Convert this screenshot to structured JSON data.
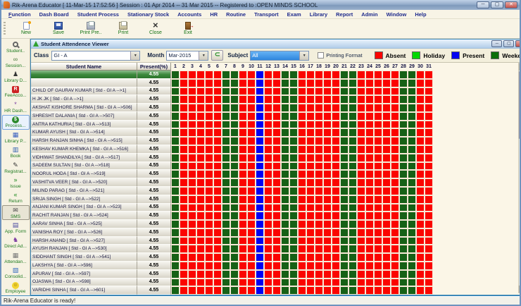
{
  "window": {
    "title": "Rik-Arena Educator [ 11-Mar-15 17:52:56 ] Session : 01 Apr 2014 -- 31 Mar 2015 -- Registered to :OPEN MINDS SCHOOL",
    "minimize": "─",
    "maximize": "▢",
    "close": "✕",
    "status_bar": "Rik-Arena Educator is ready!"
  },
  "menu_bar": {
    "items": [
      "Function",
      "Dash Board",
      "Student Process",
      "Stationary Stock",
      "Accounts",
      "HR",
      "Routine",
      "Transport",
      "Exam",
      "Library",
      "Report",
      "Admin",
      "Window",
      "Help"
    ]
  },
  "toolbar": {
    "buttons": [
      {
        "label": "New",
        "icon": "new-document-icon"
      },
      {
        "label": "Save",
        "icon": "save-floppy-icon"
      },
      {
        "label": "Print Pre..",
        "icon": "print-preview-icon"
      },
      {
        "label": "Print",
        "icon": "printer-icon"
      },
      {
        "label": "Close",
        "icon": "close-x-icon"
      },
      {
        "label": "Exit",
        "icon": "exit-door-icon"
      }
    ]
  },
  "sidebar": {
    "items": [
      {
        "label": "Student..",
        "icon": "magnifier-icon",
        "highlight": ""
      },
      {
        "label": "Session...",
        "icon": "session-icon",
        "highlight": ""
      },
      {
        "label": "Library D...",
        "icon": "library-desk-icon",
        "highlight": ""
      },
      {
        "label": "FeeAcco...",
        "icon": "fee-account-icon",
        "highlight": ""
      },
      {
        "label": "HR Dash...",
        "icon": "hr-dashboard-icon",
        "highlight": ""
      },
      {
        "label": "Process...",
        "icon": "money-bag-icon",
        "highlight": "blue"
      },
      {
        "label": "Library P...",
        "icon": "library-grid-icon",
        "highlight": ""
      },
      {
        "label": "Book",
        "icon": "book-icon",
        "highlight": ""
      },
      {
        "label": "Registrat...",
        "icon": "pencil-icon",
        "highlight": ""
      },
      {
        "label": "Issue",
        "icon": "issue-arrows-icon",
        "highlight": ""
      },
      {
        "label": "Return",
        "icon": "return-arrows-icon",
        "highlight": ""
      },
      {
        "label": "SMS",
        "icon": "sms-envelope-icon",
        "highlight": "gray"
      },
      {
        "label": "App. Form",
        "icon": "application-form-icon",
        "highlight": ""
      },
      {
        "label": "Direct Ad...",
        "icon": "direct-admission-icon",
        "highlight": ""
      },
      {
        "label": "Attendan...",
        "icon": "attendance-icon",
        "highlight": ""
      },
      {
        "label": "Consolid...",
        "icon": "consolidated-icon",
        "highlight": ""
      },
      {
        "label": "Employee",
        "icon": "smiley-icon",
        "highlight": ""
      }
    ]
  },
  "viewer": {
    "title": "Student Attendence Viewer",
    "minimize": "─",
    "maximize": "▢",
    "close": "✕",
    "class_label": "Class",
    "class_value": "GI - A",
    "month_label": "Month",
    "month_value": "Mar-2015",
    "go_button": "⊂",
    "subject_label": "Subject",
    "subject_value": "All",
    "printing_format_label": "Printing Format",
    "legend": [
      {
        "label": "Absent",
        "color": "#FB0500"
      },
      {
        "label": "Holiday",
        "color": "#00D800"
      },
      {
        "label": "Present",
        "color": "#0202F2"
      },
      {
        "label": "Weekend",
        "color": "#0A6E0A"
      }
    ]
  },
  "table": {
    "name_header": "Student Name",
    "present_header": "Present(%)",
    "days": [
      1,
      2,
      3,
      4,
      5,
      6,
      7,
      8,
      9,
      10,
      11,
      12,
      13,
      14,
      15,
      16,
      17,
      18,
      19,
      20,
      21,
      22,
      23,
      24,
      25,
      26,
      27,
      28,
      29,
      30,
      31
    ],
    "day_status": [
      "weekend",
      "absent",
      "absent",
      "absent",
      "absent",
      "absent",
      "weekend",
      "weekend",
      "absent",
      "absent",
      "present",
      "absent",
      "absent",
      "weekend",
      "weekend",
      "absent",
      "absent",
      "absent",
      "absent",
      "absent",
      "weekend",
      "weekend",
      "absent",
      "absent",
      "absent",
      "absent",
      "absent",
      "weekend",
      "weekend",
      "absent",
      "absent"
    ],
    "status_colors": {
      "absent": "#FB0500",
      "present": "#0202F2",
      "weekend": "#166116",
      "holiday": "#00D800"
    },
    "rows": [
      {
        "name": "",
        "present": "4.55",
        "selected": true
      },
      {
        "name": "",
        "present": "4.55",
        "selected": false
      },
      {
        "name": "CHILD OF GAURAV KUMAR   [ Std - GI A  -->1]",
        "present": "4.55",
        "selected": false
      },
      {
        "name": "H JK JK [ Std - GI A  -->1]",
        "present": "4.55",
        "selected": false
      },
      {
        "name": "AKSHAT KISHORE SHARMA   [ Std - GI A  -->506]",
        "present": "4.55",
        "selected": false
      },
      {
        "name": "SHRESHT DALANIA   [ Std - GI A  -->507]",
        "present": "4.55",
        "selected": false
      },
      {
        "name": "ANTRA KATHURIA   [ Std - GI A  -->513]",
        "present": "4.55",
        "selected": false
      },
      {
        "name": "KUMAR AYUSH   [ Std - GI A  -->514]",
        "present": "4.55",
        "selected": false
      },
      {
        "name": "HARSH RANJAN SINHA   [ Std - GI A  -->515]",
        "present": "4.55",
        "selected": false
      },
      {
        "name": "KESHAV KUMAR KHEMKA   [ Std - GI A  -->516]",
        "present": "4.55",
        "selected": false
      },
      {
        "name": "VIDHIWAT SHANDILYA   [ Std - GI A  -->517]",
        "present": "4.55",
        "selected": false
      },
      {
        "name": "SADEEM SULTAN   [ Std - GI A  -->518]",
        "present": "4.55",
        "selected": false
      },
      {
        "name": "NOORUL HODA   [ Std - GI A  -->519]",
        "present": "4.55",
        "selected": false
      },
      {
        "name": "VASHITVA VEER   [ Std - GI A  -->520]",
        "present": "4.55",
        "selected": false
      },
      {
        "name": "MILIND PARAG   [ Std - GI A  -->521]",
        "present": "4.55",
        "selected": false
      },
      {
        "name": "SRIJA SINGH   [ Std - GI A  -->522]",
        "present": "4.55",
        "selected": false
      },
      {
        "name": "ANJANI KUMAR SINGH   [ Std - GI A  -->523]",
        "present": "4.55",
        "selected": false
      },
      {
        "name": "RACHIT RANJAN   [ Std - GI A  -->524]",
        "present": "4.55",
        "selected": false
      },
      {
        "name": "AARAV SINHA   [ Std - GI A  -->525]",
        "present": "4.55",
        "selected": false
      },
      {
        "name": "VANISHA ROY   [ Std - GI A  -->526]",
        "present": "4.55",
        "selected": false
      },
      {
        "name": "HARSH ANAND   [ Std - GI A  -->527]",
        "present": "4.55",
        "selected": false
      },
      {
        "name": "AYUSH RANJAN   [ Std - GI A  -->530]",
        "present": "4.55",
        "selected": false
      },
      {
        "name": "SIDDHANT SINGH   [ Std - GI A  -->541]",
        "present": "4.55",
        "selected": false
      },
      {
        "name": "LAKSHYA   [ Std - GI A  -->596]",
        "present": "4.55",
        "selected": false
      },
      {
        "name": "APURAV   [ Std - GI A  -->597]",
        "present": "4.55",
        "selected": false
      },
      {
        "name": "OJASWA   [ Std - GI A  -->598]",
        "present": "4.55",
        "selected": false
      },
      {
        "name": "VARIDHI SINHA   [ Std - GI A  -->601]",
        "present": "4.55",
        "selected": false
      }
    ]
  }
}
